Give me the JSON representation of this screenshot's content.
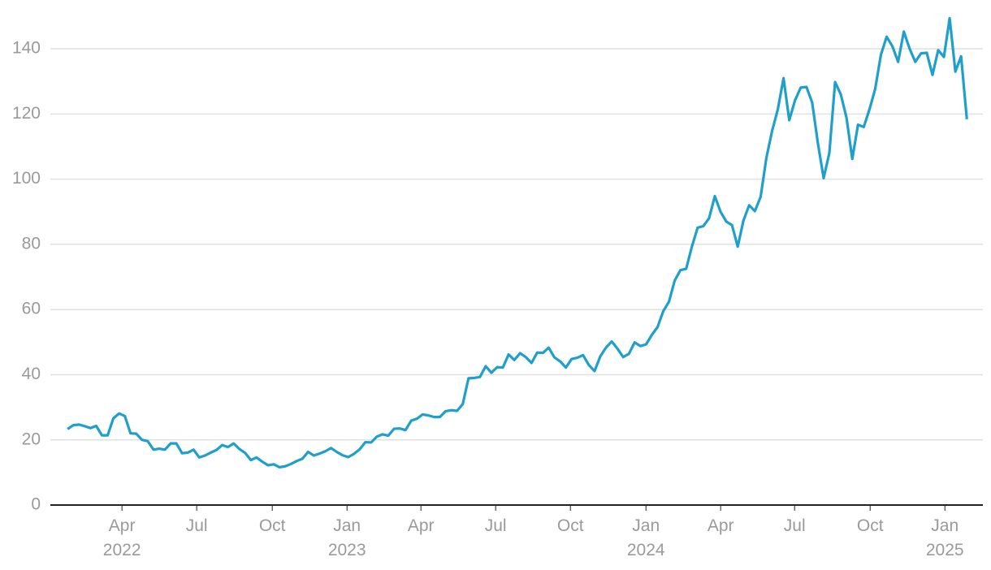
{
  "chart_data": {
    "type": "line",
    "values": [
      23.3,
      24.5,
      24.7,
      24.2,
      23.6,
      24.3,
      21.4,
      21.4,
      26.6,
      28.1,
      27.3,
      22.0,
      21.9,
      20.0,
      19.6,
      17.0,
      17.3,
      17.0,
      18.9,
      18.9,
      15.9,
      16.1,
      17.0,
      14.6,
      15.2,
      16.1,
      16.9,
      18.4,
      17.8,
      18.9,
      17.2,
      16.0,
      13.8,
      14.6,
      13.3,
      12.2,
      12.5,
      11.6,
      11.9,
      12.6,
      13.5,
      14.2,
      16.3,
      15.2,
      15.8,
      16.5,
      17.5,
      16.3,
      15.3,
      14.7,
      15.7,
      17.1,
      19.3,
      19.2,
      21.0,
      21.7,
      21.3,
      23.4,
      23.5,
      23.0,
      25.9,
      26.5,
      27.8,
      27.5,
      27.0,
      27.0,
      28.8,
      29.1,
      28.9,
      31.0,
      38.9,
      39.0,
      39.3,
      42.6,
      40.6,
      42.3,
      42.2,
      46.2,
      44.5,
      46.6,
      45.4,
      43.6,
      46.8,
      46.7,
      48.3,
      45.3,
      44.1,
      42.2,
      44.8,
      45.2,
      46.0,
      43.0,
      41.1,
      45.6,
      48.3,
      50.2,
      48.0,
      45.4,
      46.4,
      49.9,
      48.8,
      49.3,
      52.2,
      54.6,
      59.5,
      62.4,
      68.9,
      72.1,
      72.5,
      79.3,
      85.1,
      85.6,
      88.0,
      94.8,
      90.0,
      87.0,
      85.9,
      79.3,
      87.3,
      92.0,
      90.2,
      94.6,
      106.5,
      114.8,
      121.4,
      131.0,
      118.1,
      124.2,
      128.1,
      128.3,
      123.5,
      111.0,
      100.3,
      108.1,
      129.8,
      126.0,
      118.8,
      106.2,
      116.7,
      116.0,
      121.4,
      127.7,
      138.2,
      143.7,
      140.8,
      136.0,
      145.3,
      140.1,
      136.0,
      138.6,
      138.8,
      132.0,
      139.6,
      137.5,
      149.4,
      133.0,
      137.7,
      118.4
    ],
    "color": "#1f9fcc",
    "xlim": [
      -3,
      159.8
    ],
    "xticks": [
      {
        "value": 9.5,
        "label": "Apr\n2022"
      },
      {
        "value": 22.55,
        "label": "Jul"
      },
      {
        "value": 35.74,
        "label": "Oct"
      },
      {
        "value": 48.79,
        "label": "Jan\n2023"
      },
      {
        "value": 61.69,
        "label": "Apr"
      },
      {
        "value": 74.74,
        "label": "Jul"
      },
      {
        "value": 87.79,
        "label": "Oct"
      },
      {
        "value": 100.98,
        "label": "Jan\n2024"
      },
      {
        "value": 114.02,
        "label": "Apr"
      },
      {
        "value": 126.93,
        "label": "Jul"
      },
      {
        "value": 140.12,
        "label": "Oct"
      },
      {
        "value": 153.17,
        "label": "Jan\n2025"
      }
    ],
    "ylim": [
      0,
      150
    ],
    "yticks": [
      0,
      20,
      40,
      60,
      80,
      100,
      120,
      140
    ],
    "grid": true
  }
}
